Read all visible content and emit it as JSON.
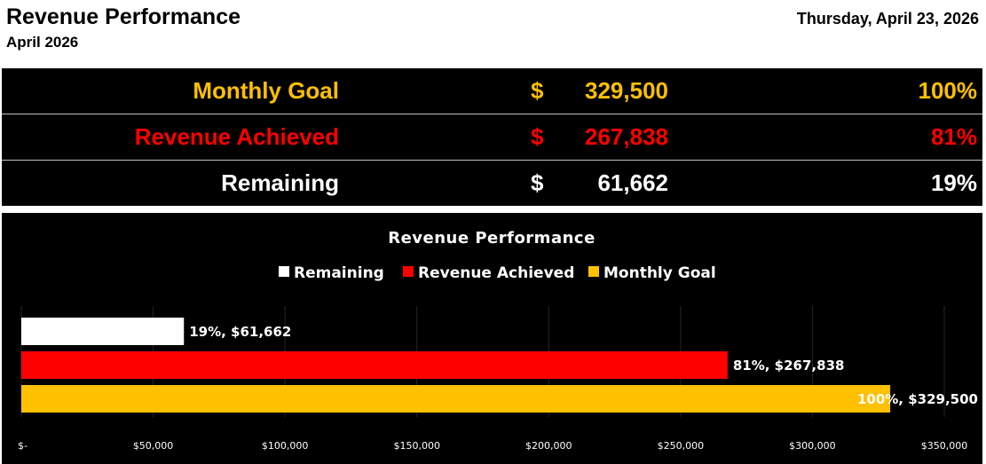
{
  "header": {
    "title": "Revenue Performance",
    "subtitle": "April 2026",
    "date": "Thursday, April 23, 2026"
  },
  "summary": [
    {
      "label": "Monthly Goal",
      "currency": "$",
      "amount": "329,500",
      "percent": "100%",
      "color": "#FFC000"
    },
    {
      "label": "Revenue Achieved",
      "currency": "$",
      "amount": "267,838",
      "percent": "81%",
      "color": "#FF0000"
    },
    {
      "label": "Remaining",
      "currency": "$",
      "amount": "61,662",
      "percent": "19%",
      "color": "#FFFFFF"
    }
  ],
  "chart_data": {
    "type": "bar",
    "orientation": "horizontal",
    "title": "Revenue Performance",
    "legend_position": "top",
    "grid": true,
    "xlim": [
      0,
      350000
    ],
    "x_ticks": [
      {
        "value": 0,
        "label": "$-"
      },
      {
        "value": 50000,
        "label": "$50,000"
      },
      {
        "value": 100000,
        "label": "$100,000"
      },
      {
        "value": 150000,
        "label": "$150,000"
      },
      {
        "value": 200000,
        "label": "$200,000"
      },
      {
        "value": 250000,
        "label": "$250,000"
      },
      {
        "value": 300000,
        "label": "$300,000"
      },
      {
        "value": 350000,
        "label": "$350,000"
      }
    ],
    "series": [
      {
        "name": "Remaining",
        "value": 61662,
        "percent": "19%",
        "data_label": "19%, $61,662",
        "color": "#FFFFFF"
      },
      {
        "name": "Revenue Achieved",
        "value": 267838,
        "percent": "81%",
        "data_label": "81%, $267,838",
        "color": "#FF0000"
      },
      {
        "name": "Monthly Goal",
        "value": 329500,
        "percent": "100%",
        "data_label": "100%, $329,500",
        "color": "#FFC000"
      }
    ]
  }
}
